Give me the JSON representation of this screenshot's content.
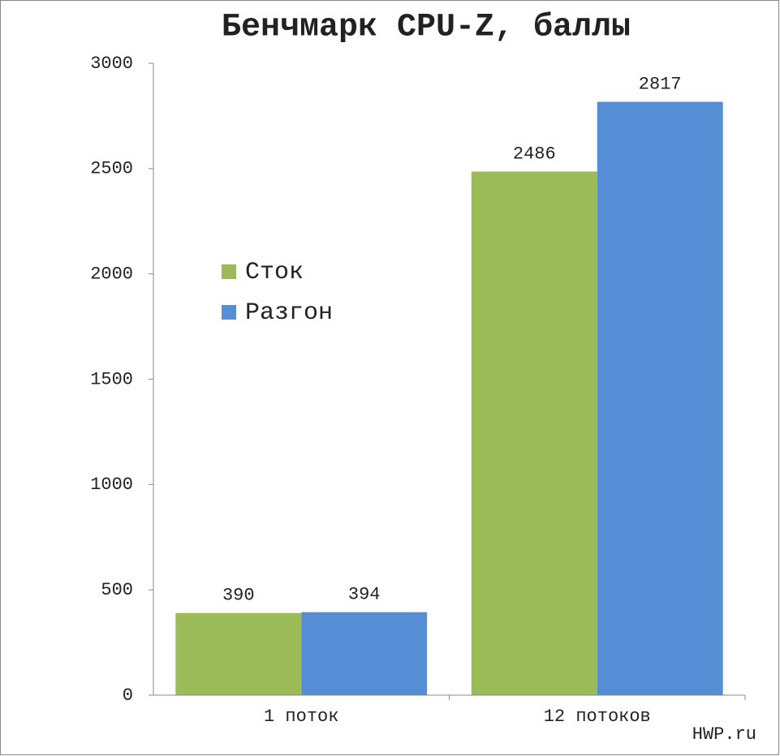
{
  "chart_data": {
    "type": "bar",
    "title": "Бенчмарк CPU-Z, баллы",
    "categories": [
      "1 поток",
      "12 потоков"
    ],
    "series": [
      {
        "name": "Сток",
        "color": "#9bbb59",
        "values": [
          390,
          2486
        ]
      },
      {
        "name": "Разгон",
        "color": "#558ed5",
        "values": [
          394,
          2817
        ]
      }
    ],
    "ylim": [
      0,
      3000
    ],
    "yticks": [
      0,
      500,
      1000,
      1500,
      2000,
      2500,
      3000
    ],
    "grid": false,
    "legend": "center-left",
    "watermark": "HWP.ru"
  }
}
